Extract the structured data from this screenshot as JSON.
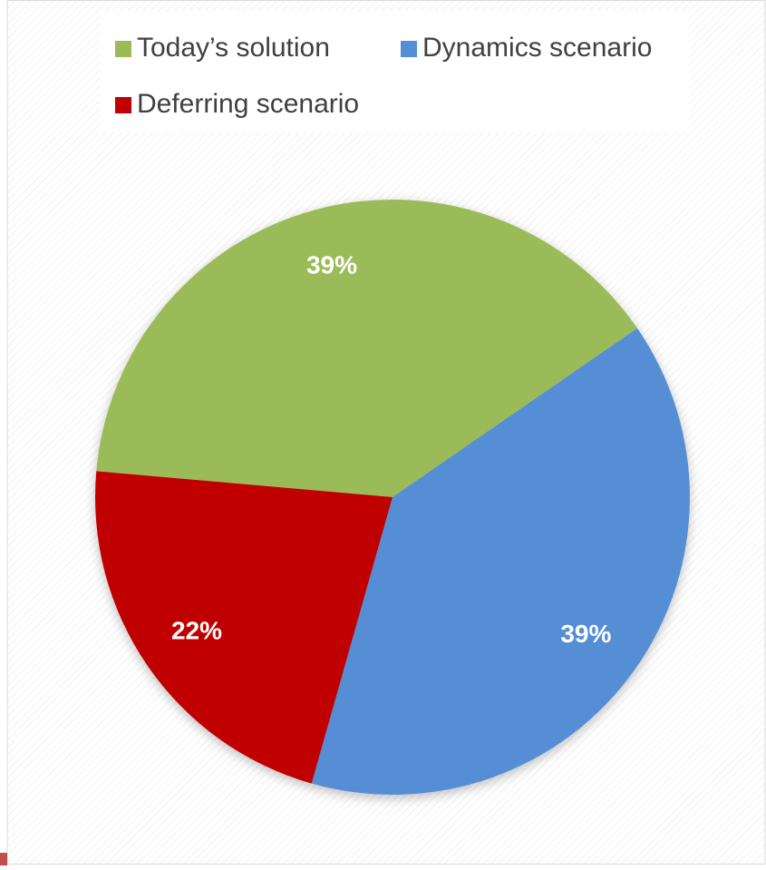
{
  "chart_data": {
    "type": "pie",
    "categories": [
      "Today’s solution",
      "Dynamics scenario",
      "Deferring scenario"
    ],
    "values": [
      39,
      39,
      22
    ],
    "value_labels": [
      "39%",
      "39%",
      "22%"
    ],
    "colors": [
      "#9bbb59",
      "#558ed5",
      "#c00000"
    ],
    "legend": "top"
  }
}
